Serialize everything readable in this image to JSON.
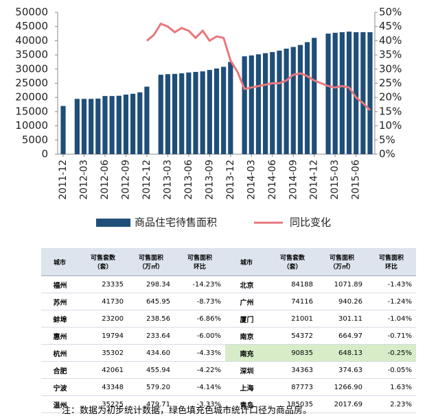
{
  "chart_data": {
    "type": "bar",
    "categories": [
      "2011-12",
      null,
      null,
      "2012-03",
      null,
      null,
      "2012-06",
      null,
      null,
      "2012-09",
      null,
      null,
      "2012-12",
      null,
      null,
      "2013-03",
      null,
      null,
      "2013-06",
      null,
      null,
      "2013-09",
      null,
      null,
      "2013-12",
      null,
      null,
      "2014-03",
      null,
      null,
      "2014-06",
      null,
      null,
      "2014-09",
      null,
      null,
      "2014-12",
      null,
      null,
      "2015-03",
      null,
      null,
      "2015-06",
      null,
      null
    ],
    "series": [
      {
        "name": "商品住宅待售面积",
        "color": "#1f4e79",
        "type": "bar",
        "values": [
          17000,
          null,
          19500,
          19500,
          19500,
          19600,
          20500,
          20500,
          20600,
          21000,
          21300,
          21800,
          23800,
          null,
          28000,
          28200,
          28300,
          28500,
          28800,
          29000,
          29200,
          29700,
          30200,
          30800,
          32500,
          null,
          34500,
          34800,
          35200,
          35600,
          36000,
          36500,
          37200,
          37800,
          38500,
          39500,
          41000,
          null,
          42500,
          42800,
          43000,
          43200,
          43000,
          43000,
          43000
        ]
      },
      {
        "name": "同比变化",
        "color": "#e8777d",
        "type": "line",
        "axis": "y2",
        "values": [
          null,
          null,
          null,
          null,
          null,
          null,
          null,
          null,
          null,
          null,
          null,
          null,
          40,
          42,
          46,
          45,
          43,
          44.5,
          43.5,
          41,
          43.5,
          40,
          41.5,
          41,
          33,
          29,
          23,
          23.5,
          24,
          24.5,
          25,
          25,
          26,
          28,
          28.5,
          27.5,
          26,
          25,
          24,
          23.5,
          24,
          23.5,
          20,
          18,
          15.5
        ]
      }
    ],
    "ylim": [
      0,
      50000
    ],
    "yticks": [
      0,
      5000,
      10000,
      15000,
      20000,
      25000,
      30000,
      35000,
      40000,
      45000,
      50000
    ],
    "y2lim": [
      0,
      50
    ],
    "y2ticks": [
      {
        "value": 0,
        "label": "0%"
      },
      {
        "value": 5,
        "label": "5%"
      },
      {
        "value": 10,
        "label": "10%"
      },
      {
        "value": 15,
        "label": "15%"
      },
      {
        "value": 20,
        "label": "20%"
      },
      {
        "value": 25,
        "label": "25%"
      },
      {
        "value": 30,
        "label": "30%"
      },
      {
        "value": 35,
        "label": "35%"
      },
      {
        "value": 40,
        "label": "40%"
      },
      {
        "value": 45,
        "label": "45%"
      },
      {
        "value": 50,
        "label": "50%"
      }
    ],
    "grid": false,
    "legend": "bottom"
  },
  "table": {
    "header": [
      [
        "城市"
      ],
      [
        "可售套数",
        "（套）"
      ],
      [
        "可售面积",
        "（万㎡）"
      ],
      [
        "可售面积",
        "环比"
      ],
      [
        "城市"
      ],
      [
        "可售套数",
        "（套）"
      ],
      [
        "可售面积",
        "（万㎡）"
      ],
      [
        "可售面积",
        "环比"
      ]
    ],
    "rows": [
      [
        "福州",
        "23335",
        "298.34",
        "-14.23%",
        "北京",
        "84188",
        "1071.89",
        "-1.43%"
      ],
      [
        "苏州",
        "41730",
        "645.95",
        "-8.73%",
        "广州",
        "74116",
        "940.26",
        "-1.24%"
      ],
      [
        "蚌埠",
        "23200",
        "238.56",
        "-6.86%",
        "厦门",
        "21001",
        "301.11",
        "-1.04%"
      ],
      [
        "惠州",
        "19794",
        "233.64",
        "-6.00%",
        "南京",
        "54372",
        "664.97",
        "-0.71%"
      ],
      [
        "杭州",
        "35302",
        "434.60",
        "-4.33%",
        "南充",
        "90835",
        "648.13",
        "-0.25%"
      ],
      [
        "合肥",
        "42061",
        "455.94",
        "-4.22%",
        "深圳",
        "34363",
        "374.63",
        "-0.05%"
      ],
      [
        "宁波",
        "43348",
        "579.20",
        "-4.14%",
        "上海",
        "87773",
        "1266.90",
        "1.63%"
      ],
      [
        "温州",
        "35225",
        "479.71",
        "-3.33%",
        "青岛",
        "185035",
        "2017.69",
        "2.23%"
      ]
    ],
    "highlight_color": "#d8ecc8",
    "highlight_row": 4
  },
  "note": "注：数据为初步统计数据，绿色填充色城市统计口径为商品房。"
}
